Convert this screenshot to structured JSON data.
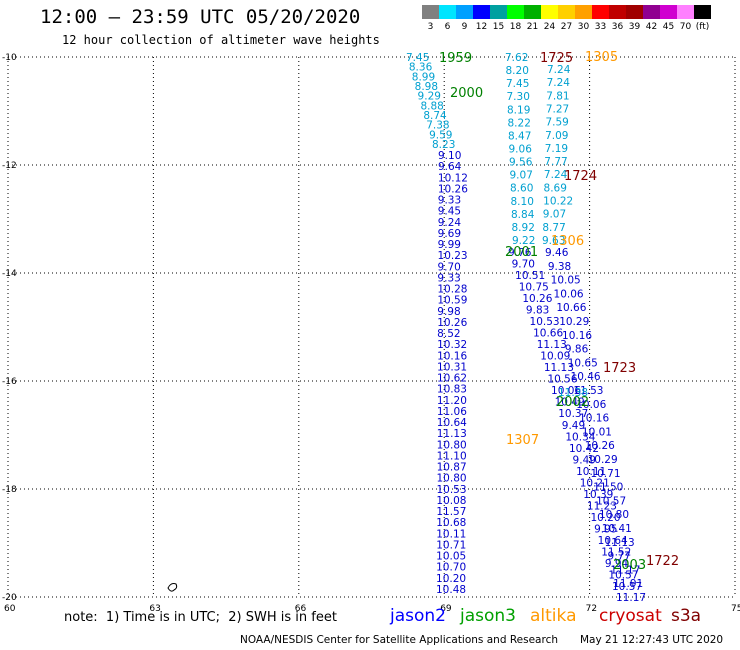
{
  "header": {
    "title": "12:00 — 23:59 UTC 05/20/2020",
    "subtitle": "12 hour collection of altimeter wave heights"
  },
  "colorbar": {
    "colors": [
      "#808080",
      "#00e5ff",
      "#00a0ff",
      "#0000ff",
      "#00a0a0",
      "#00ff00",
      "#00b000",
      "#ffff00",
      "#ffd000",
      "#ffa000",
      "#ff0000",
      "#c00000",
      "#a00000",
      "#900090",
      "#d000d0",
      "#ff80ff",
      "#000000"
    ],
    "labels": [
      "3",
      "6",
      "9",
      "12",
      "15",
      "18",
      "21",
      "24",
      "27",
      "30",
      "33",
      "36",
      "39",
      "42",
      "45",
      "70",
      "(ft)"
    ]
  },
  "axes": {
    "lat_labels": [
      "-10",
      "-12",
      "-14",
      "-16",
      "-18",
      "-20"
    ],
    "lon_labels": [
      "60",
      "63",
      "66",
      "69",
      "72",
      "75"
    ]
  },
  "tracks": {
    "cyan_west": [
      "7.45",
      "8.36",
      "8.99",
      "8.98",
      "9.29",
      "8.88",
      "8.74",
      "7.38",
      "9.59",
      "8.23"
    ],
    "blue_west": [
      "9.10",
      "9.64",
      "10.12",
      "10.26",
      "9.33",
      "9.45",
      "9.24",
      "9.69",
      "9.99",
      "10.23",
      "9.70",
      "9.33",
      "10.28",
      "10.59",
      "9.98",
      "10.26",
      "8.52",
      "10.32",
      "10.16",
      "10.31",
      "10.62",
      "10.83",
      "11.20",
      "11.06",
      "10.64",
      "11.13",
      "10.80",
      "11.10",
      "10.87",
      "10.80",
      "10.53",
      "10.08",
      "11.57",
      "10.68",
      "10.11",
      "10.71",
      "10.05",
      "10.70",
      "10.20",
      "10.48"
    ],
    "cyan_mid": [
      "7.62",
      "8.20",
      "7.45",
      "7.30",
      "8.19",
      "8.22",
      "8.47",
      "9.06",
      "9.56",
      "9.07",
      "8.60",
      "8.10",
      "8.84",
      "8.92",
      "9.22"
    ],
    "cyan_east": [
      "7.24",
      "7.24",
      "7.81",
      "7.27",
      "7.59",
      "7.09",
      "7.19",
      "7.77",
      "7.24",
      "8.69",
      "10.22",
      "9.07",
      "8.77",
      "9.63"
    ],
    "blue_mid": [
      "9.76",
      "9.70",
      "10.51",
      "10.75",
      "10.26",
      "9.83",
      "10.53",
      "10.66",
      "11.13",
      "10.09",
      "11.13",
      "10.56",
      "10.06",
      "10.49",
      "10.37",
      "9.49",
      "10.34",
      "10.42",
      "9.49",
      "10.11",
      "10.21",
      "10.39",
      "11.23",
      "10.20",
      "9.95",
      "10.64",
      "11.52",
      "9.94",
      "10.57",
      "10.57"
    ],
    "blue_east": [
      "9.46",
      "9.38",
      "10.05",
      "10.06",
      "10.66",
      "10.29",
      "10.16",
      "9.86",
      "10.65",
      "10.46",
      "11.53",
      "10.06",
      "10.16",
      "10.01",
      "10.26",
      "10.29",
      "10.71",
      "11.50",
      "10.57",
      "10.80",
      "10.41",
      "11.13",
      "9.77",
      "11.17",
      "11.91",
      "11.17"
    ],
    "cyan_extra": [
      "11.38"
    ]
  },
  "time_labels": {
    "t1959": "1959",
    "t2000": "2000",
    "t1725": "1725",
    "t1305": "1305",
    "t1724": "1724",
    "t2001": "2001",
    "t1306": "1306",
    "t1723": "1723",
    "t2002": "2002",
    "t1307": "1307",
    "t1722": "1722",
    "t2003": "2003"
  },
  "note": "note:  1) Time is in UTC;  2) SWH is in feet",
  "legend": {
    "jason2": "jason2",
    "jason3": "jason3",
    "altika": "altika",
    "cryosat": "cryosat",
    "s3a": "s3a"
  },
  "footer": "NOAA/NESDIS Center for Satellite Applications and Research",
  "stamp": "May 21 12:27:43 UTC 2020"
}
